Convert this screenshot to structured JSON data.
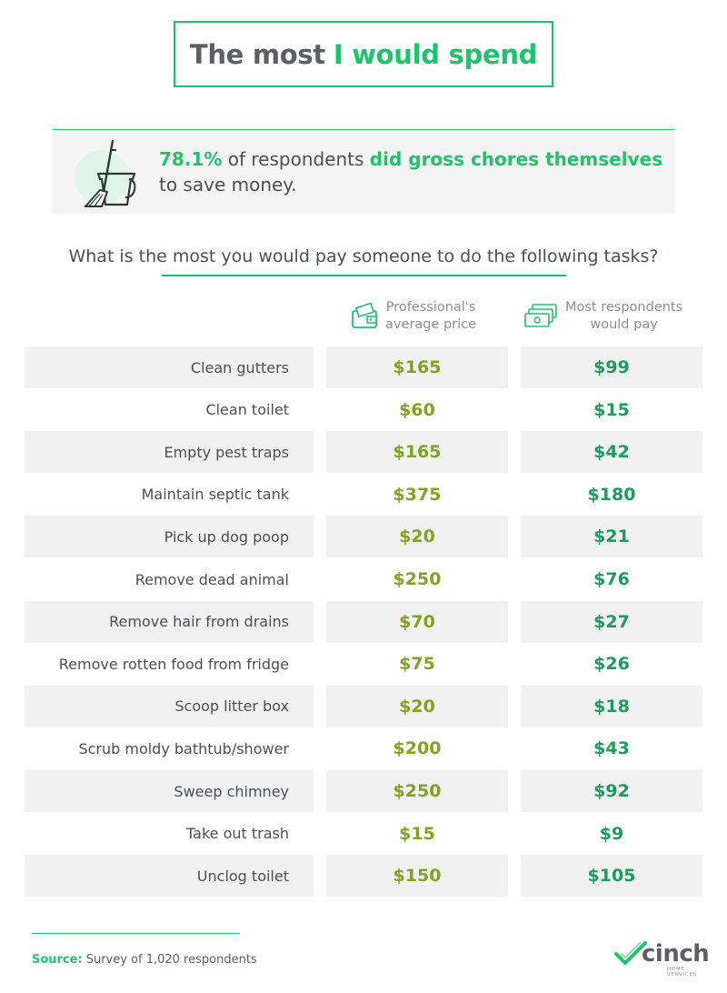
{
  "title": {
    "part1": "The most",
    "part2": "I would spend"
  },
  "stat": {
    "pct": "78.1%",
    "text1": "of respondents",
    "highlight": "did gross chores themselves",
    "text2": "to save money."
  },
  "question": "What is the most you would pay someone to do the following tasks?",
  "columns": {
    "professional": [
      "Professional's",
      "average price"
    ],
    "respondents": [
      "Most respondents",
      "would pay"
    ]
  },
  "icons": {
    "stat": "mop-bucket-icon",
    "professional": "wallet-cash-icon",
    "respondents": "cash-stack-icon"
  },
  "colors": {
    "accent": "#1fc36b",
    "professional_value": "#7ea51f",
    "respondent_value": "#1c9c5c",
    "row_shade": "#f1f1f1"
  },
  "chart_data": {
    "type": "table",
    "columns": [
      "",
      "Professional's average price",
      "Most respondents would pay"
    ],
    "rows": [
      {
        "task": "Clean gutters",
        "professional": "$165",
        "respondents": "$99"
      },
      {
        "task": "Clean toilet",
        "professional": "$60",
        "respondents": "$15"
      },
      {
        "task": "Empty pest traps",
        "professional": "$165",
        "respondents": "$42"
      },
      {
        "task": "Maintain septic tank",
        "professional": "$375",
        "respondents": "$180"
      },
      {
        "task": "Pick up dog poop",
        "professional": "$20",
        "respondents": "$21"
      },
      {
        "task": "Remove dead animal",
        "professional": "$250",
        "respondents": "$76"
      },
      {
        "task": "Remove hair from drains",
        "professional": "$70",
        "respondents": "$27"
      },
      {
        "task": "Remove rotten food from fridge",
        "professional": "$75",
        "respondents": "$26"
      },
      {
        "task": "Scoop litter box",
        "professional": "$20",
        "respondents": "$18"
      },
      {
        "task": "Scrub moldy bathtub/shower",
        "professional": "$200",
        "respondents": "$43"
      },
      {
        "task": "Sweep chimney",
        "professional": "$250",
        "respondents": "$92"
      },
      {
        "task": "Take out trash",
        "professional": "$15",
        "respondents": "$9"
      },
      {
        "task": "Unclog toilet",
        "professional": "$150",
        "respondents": "$105"
      }
    ]
  },
  "source": {
    "label": "Source:",
    "text": "Survey of 1,020 respondents"
  },
  "logo": {
    "name": "cinch",
    "tagline": "HOME SERVICES"
  }
}
